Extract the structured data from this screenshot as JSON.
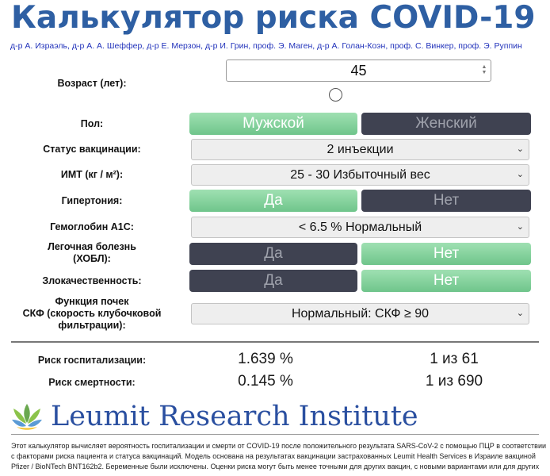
{
  "header": {
    "title_bold": "Калькулятор риска",
    "title_rest": "COVID-19",
    "authors": "д-р А. Израэль, д-р А. А. Шеффер, д-р Е. Мерзон, д-р И. Грин, проф. Э. Маген, д-р А. Голан-Коэн, проф. С. Винкер, проф. Э. Руппин"
  },
  "form": {
    "age_label": "Возраст (лет):",
    "age_value": "45",
    "sex_label": "Пол:",
    "sex_male": "Мужской",
    "sex_female": "Женский",
    "vaccination_label": "Статус вакцинации:",
    "vaccination_value": "2 инъекции",
    "bmi_label": "ИМТ (кг / м²):",
    "bmi_value": "25 - 30 Избыточный вес",
    "hypertension_label": "Гипертония:",
    "hba1c_label": "Гемоглобин A1C:",
    "hba1c_value": "< 6.5 % Нормальный",
    "copd_label_line1": "Легочная болезнь",
    "copd_label_line2": "(ХОБЛ):",
    "malignancy_label": "Злокачественность:",
    "kidney_label_line1": "Функция почек",
    "kidney_label_line2": "СКФ (скорость клубочковой",
    "kidney_label_line3": "фильтрации):",
    "kidney_value": "Нормальный: СКФ ≥ 90",
    "yes": "Да",
    "no": "Нет"
  },
  "results": {
    "hosp_label": "Риск госпитализации:",
    "hosp_pct": "1.639 %",
    "hosp_ratio": "1 из 61",
    "death_label": "Риск смертности:",
    "death_pct": "0.145 %",
    "death_ratio": "1 из 690"
  },
  "brand": {
    "name": "Leumit Research Institute"
  },
  "disclaimer": "Этот калькулятор вычисляет вероятность госпитализации и смерти от COVID-19 после положительного результата SARS-CoV-2 с помощью ПЦР в соответствии с факторами риска пациента и статуса вакцинаций. Модель основана на результатах вакцинации застрахованных Leumit Health Services в Израиле вакциной Pfizer / BioNTech BNT162b2. Беременные были исключены. Оценки риска могут быть менее точными для других вакцин, с новыми вариантами или для других",
  "colors": {
    "title": "#2e5fa3",
    "selected": "#7dcf97",
    "unselected": "#3f4251",
    "brand": "#2a4fa0"
  }
}
